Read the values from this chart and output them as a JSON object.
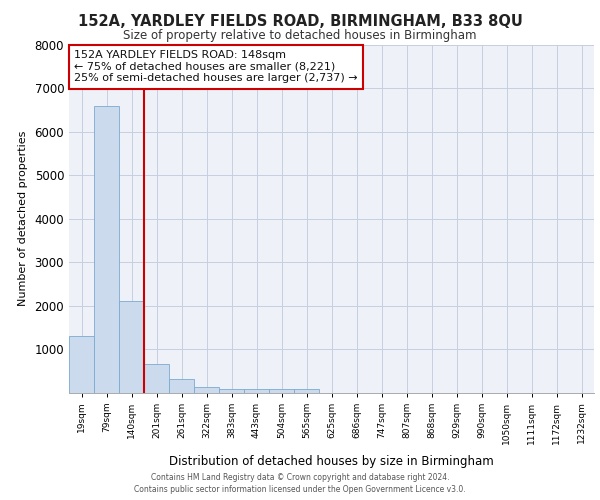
{
  "title": "152A, YARDLEY FIELDS ROAD, BIRMINGHAM, B33 8QU",
  "subtitle": "Size of property relative to detached houses in Birmingham",
  "xlabel": "Distribution of detached houses by size in Birmingham",
  "ylabel": "Number of detached properties",
  "bar_values": [
    1300,
    6600,
    2100,
    650,
    300,
    130,
    80,
    80,
    80,
    80,
    0,
    0,
    0,
    0,
    0,
    0,
    0,
    0,
    0,
    0,
    0
  ],
  "bar_labels": [
    "19sqm",
    "79sqm",
    "140sqm",
    "201sqm",
    "261sqm",
    "322sqm",
    "383sqm",
    "443sqm",
    "504sqm",
    "565sqm",
    "625sqm",
    "686sqm",
    "747sqm",
    "807sqm",
    "868sqm",
    "929sqm",
    "990sqm",
    "1050sqm",
    "1111sqm",
    "1172sqm",
    "1232sqm"
  ],
  "bar_color": "#ccdaed",
  "bar_edge_color": "#7aaad0",
  "grid_color": "#c5cfe0",
  "bg_color": "#eef1f8",
  "vline_x": 2.5,
  "vline_color": "#cc0000",
  "annotation_text": "152A YARDLEY FIELDS ROAD: 148sqm\n← 75% of detached houses are smaller (8,221)\n25% of semi-detached houses are larger (2,737) →",
  "annotation_box_edgecolor": "#cc0000",
  "ylim_max": 8000,
  "yticks": [
    1000,
    2000,
    3000,
    4000,
    5000,
    6000,
    7000,
    8000
  ],
  "footer_line1": "Contains HM Land Registry data © Crown copyright and database right 2024.",
  "footer_line2": "Contains public sector information licensed under the Open Government Licence v3.0."
}
